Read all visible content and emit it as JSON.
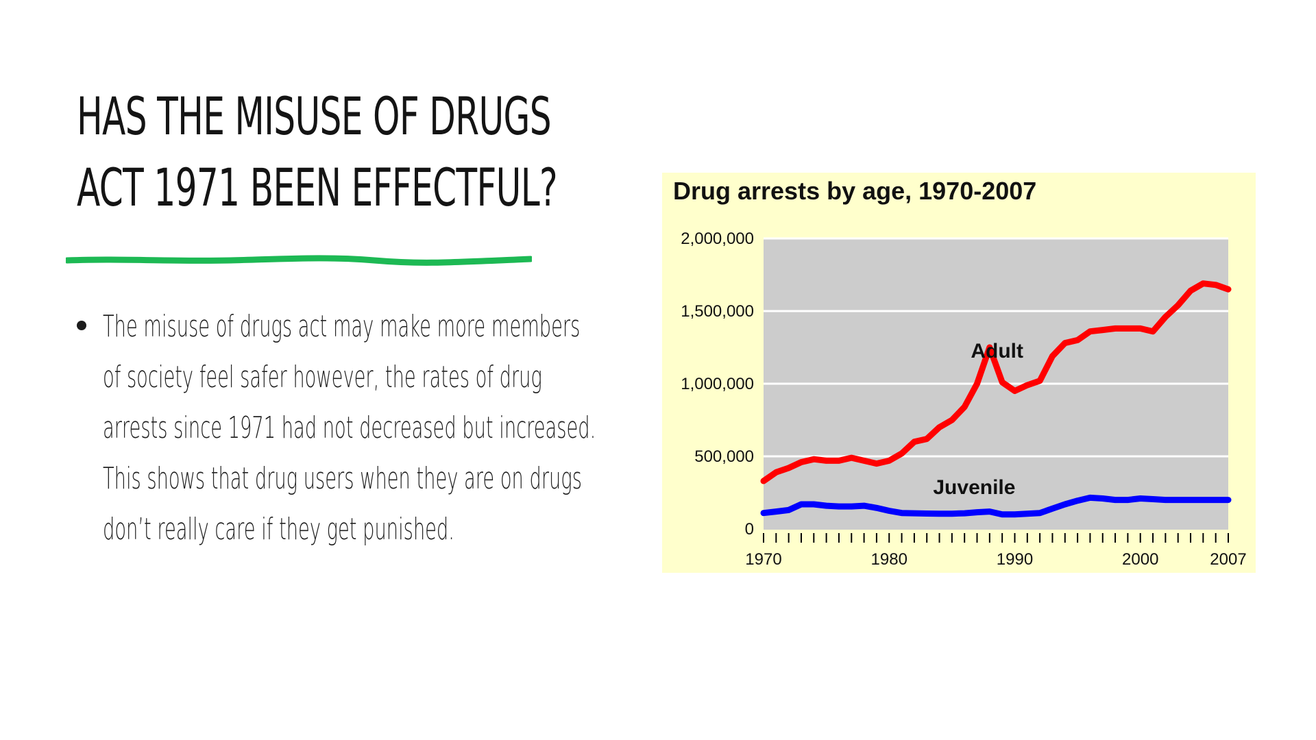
{
  "slide": {
    "title_lines": [
      "Has the misuse of drugs",
      "act 1971 been effectful?"
    ],
    "accent_color": "#1db954",
    "bullet": {
      "lines": [
        "The misuse of drugs act may make more members",
        "of society feel safer however, the rates of drug",
        "arrests since 1971 had not decreased but increased.",
        "This shows that drug users when they are on drugs",
        "don’t really care if they get punished."
      ]
    }
  },
  "chart_data": {
    "type": "line",
    "title": "Drug arrests by age, 1970-2007",
    "background": "#ffffcc",
    "plot_background": "#cccccc",
    "ylim": [
      0,
      2000000
    ],
    "xlim": [
      1970,
      2007
    ],
    "y_ticks": [
      0,
      500000,
      1000000,
      1500000,
      2000000
    ],
    "y_tick_labels": [
      "0",
      "500,000",
      "1,000,000",
      "1,500,000",
      "2,000,000"
    ],
    "x_tick_labels": [
      {
        "value": 1970,
        "label": "1970"
      },
      {
        "value": 1980,
        "label": "1980"
      },
      {
        "value": 1990,
        "label": "1990"
      },
      {
        "value": 2000,
        "label": "2000"
      },
      {
        "value": 2007,
        "label": "2007"
      }
    ],
    "x": [
      1970,
      1971,
      1972,
      1973,
      1974,
      1975,
      1976,
      1977,
      1978,
      1979,
      1980,
      1981,
      1982,
      1983,
      1984,
      1985,
      1986,
      1987,
      1988,
      1989,
      1990,
      1991,
      1992,
      1993,
      1994,
      1995,
      1996,
      1997,
      1998,
      1999,
      2000,
      2001,
      2002,
      2003,
      2004,
      2005,
      2006,
      2007
    ],
    "series": [
      {
        "name": "Adult",
        "color": "#ff0000",
        "label_at": {
          "x": 1986.5,
          "y": 1180000
        },
        "values": [
          330000,
          390000,
          420000,
          460000,
          480000,
          470000,
          470000,
          490000,
          470000,
          450000,
          470000,
          520000,
          600000,
          620000,
          700000,
          750000,
          840000,
          1000000,
          1250000,
          1010000,
          950000,
          990000,
          1020000,
          1190000,
          1280000,
          1300000,
          1360000,
          1370000,
          1380000,
          1380000,
          1380000,
          1360000,
          1460000,
          1540000,
          1640000,
          1690000,
          1680000,
          1650000
        ]
      },
      {
        "name": "Juvenile",
        "color": "#0000ff",
        "label_at": {
          "x": 1983.5,
          "y": 240000
        },
        "values": [
          110000,
          120000,
          130000,
          170000,
          170000,
          160000,
          155000,
          155000,
          160000,
          145000,
          125000,
          110000,
          108000,
          106000,
          105000,
          105000,
          108000,
          115000,
          120000,
          100000,
          100000,
          105000,
          110000,
          140000,
          170000,
          195000,
          215000,
          210000,
          200000,
          200000,
          210000,
          205000,
          200000,
          200000,
          200000,
          200000,
          200000,
          200000
        ]
      }
    ]
  }
}
